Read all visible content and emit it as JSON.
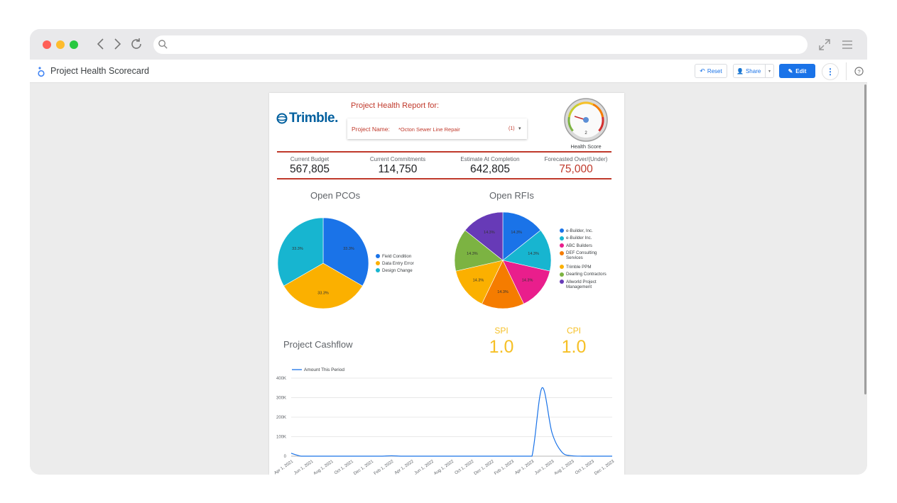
{
  "app": {
    "title": "Project Health Scorecard",
    "buttons": {
      "reset": "Reset",
      "share": "Share",
      "edit": "Edit"
    }
  },
  "colors": {
    "accent": "#1a73e8",
    "red": "#c0392b",
    "gold": "#f6c026"
  },
  "report": {
    "logo_text": "Trimble.",
    "heading": "Project Health Report for:",
    "filter": {
      "label": "Project Name:",
      "value": "*Octon Sewer Line Repair",
      "count": "(1)"
    },
    "gauge": {
      "value": "2",
      "label": "Health Score"
    },
    "kpis": [
      {
        "label": "Current Budget",
        "value": "567,805"
      },
      {
        "label": "Current Commitments",
        "value": "114,750"
      },
      {
        "label": "Estimate At Completion",
        "value": "642,805"
      },
      {
        "label": "Forecasted Over/(Under)",
        "value": "75,000"
      }
    ],
    "spi": {
      "label": "SPI",
      "value": "1.0"
    },
    "cpi": {
      "label": "CPI",
      "value": "1.0"
    }
  },
  "chart_data": [
    {
      "type": "pie",
      "title": "Open PCOs",
      "labels": [
        "Field Condition",
        "Data Entry Error",
        "Design Change"
      ],
      "values": [
        33.3,
        33.3,
        33.3
      ],
      "value_labels": [
        "33.3%",
        "33.3%",
        "33.3%"
      ],
      "colors": [
        "#1a73e8",
        "#fbb000",
        "#17b5d0"
      ]
    },
    {
      "type": "pie",
      "title": "Open RFIs",
      "labels": [
        "e-Builder, Inc.",
        "e-Builder Inc.",
        "ABC Builders",
        "DEF Consulting Services",
        "Trimble PPM",
        "Dearling Contractors",
        "Allworld Project Management"
      ],
      "values": [
        14.3,
        14.3,
        14.3,
        14.3,
        14.3,
        14.3,
        14.3
      ],
      "value_labels": [
        "14.3%",
        "14.3%",
        "14.3%",
        "14.3%",
        "14.3%",
        "14.3%",
        "14.3%"
      ],
      "colors": [
        "#1a73e8",
        "#17b5d0",
        "#e91e8c",
        "#f57c00",
        "#fbb000",
        "#7cb342",
        "#673ab7"
      ]
    },
    {
      "type": "line",
      "title": "Project Cashflow",
      "series": [
        {
          "name": "Amount This Period",
          "x": [
            "Apr 1, 2021",
            "May 1, 2021",
            "Jun 1, 2021",
            "Jul 1, 2021",
            "Aug 1, 2021",
            "Sep 1, 2021",
            "Oct 1, 2021",
            "Nov 1, 2021",
            "Dec 1, 2021",
            "Jan 1, 2022",
            "Feb 1, 2022",
            "Mar 1, 2022",
            "Apr 1, 2022",
            "May 1, 2022",
            "Jun 1, 2022",
            "Jul 1, 2022",
            "Aug 1, 2022",
            "Sep 1, 2022",
            "Oct 1, 2022",
            "Nov 1, 2022",
            "Dec 1, 2022",
            "Jan 1, 2023",
            "Feb 1, 2023",
            "Mar 1, 2023",
            "Apr 1, 2023",
            "May 1, 2023",
            "Jun 1, 2023",
            "Jul 1, 2023",
            "Aug 1, 2023",
            "Sep 1, 2023",
            "Oct 1, 2023",
            "Nov 1, 2023",
            "Dec 1, 2023"
          ],
          "y": [
            15000,
            0,
            0,
            0,
            0,
            0,
            0,
            0,
            0,
            0,
            2000,
            0,
            0,
            0,
            0,
            0,
            0,
            0,
            0,
            0,
            0,
            0,
            0,
            0,
            0,
            350000,
            120000,
            20000,
            2000,
            0,
            0,
            0,
            0
          ]
        }
      ],
      "xticks": [
        "Apr 1, 2021",
        "Jun 1, 2021",
        "Aug 1, 2021",
        "Oct 1, 2021",
        "Dec 1, 2021",
        "Feb 1, 2022",
        "Apr 1, 2022",
        "Jun 1, 2022",
        "Aug 1, 2022",
        "Oct 1, 2022",
        "Dec 1, 2022",
        "Feb 1, 2023",
        "Apr 1, 2023",
        "Jun 1, 2023",
        "Aug 1, 2023",
        "Oct 1, 2023",
        "Dec 1, 2023"
      ],
      "yticks": [
        "0",
        "100K",
        "200K",
        "300K",
        "400K"
      ],
      "ylim": [
        0,
        400000
      ],
      "grid": true,
      "legend": "top-left",
      "color": "#1a73e8"
    }
  ]
}
